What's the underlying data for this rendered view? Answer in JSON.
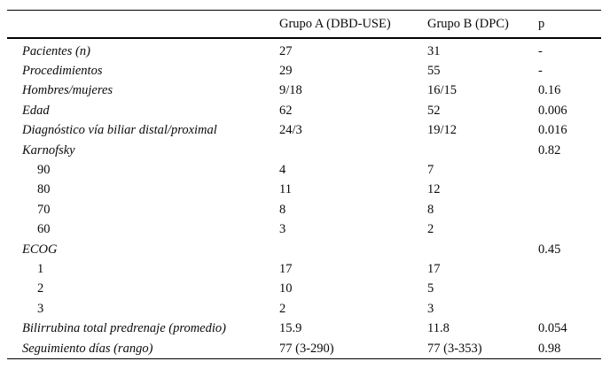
{
  "table": {
    "columns": [
      "",
      "Grupo A (DBD-USE)",
      "Grupo B (DPC)",
      "p"
    ],
    "rows": [
      {
        "label": "Pacientes (n)",
        "italic": true,
        "indent": false,
        "grupo_a": "27",
        "grupo_b": "31",
        "p": "-"
      },
      {
        "label": "Procedimientos",
        "italic": true,
        "indent": false,
        "grupo_a": "29",
        "grupo_b": "55",
        "p": "-"
      },
      {
        "label": "Hombres/mujeres",
        "italic": true,
        "indent": false,
        "grupo_a": "9/18",
        "grupo_b": "16/15",
        "p": "0.16"
      },
      {
        "label": "Edad",
        "italic": true,
        "indent": false,
        "grupo_a": "62",
        "grupo_b": "52",
        "p": "0.006"
      },
      {
        "label": "Diagnóstico vía biliar distal/proximal",
        "italic": true,
        "indent": false,
        "grupo_a": "24/3",
        "grupo_b": "19/12",
        "p": "0.016"
      },
      {
        "label": "Karnofsky",
        "italic": true,
        "indent": false,
        "grupo_a": "",
        "grupo_b": "",
        "p": "0.82"
      },
      {
        "label": "90",
        "italic": false,
        "indent": true,
        "grupo_a": "4",
        "grupo_b": "7",
        "p": ""
      },
      {
        "label": "80",
        "italic": false,
        "indent": true,
        "grupo_a": "11",
        "grupo_b": "12",
        "p": ""
      },
      {
        "label": "70",
        "italic": false,
        "indent": true,
        "grupo_a": "8",
        "grupo_b": "8",
        "p": ""
      },
      {
        "label": "60",
        "italic": false,
        "indent": true,
        "grupo_a": "3",
        "grupo_b": "2",
        "p": ""
      },
      {
        "label": "ECOG",
        "italic": true,
        "indent": false,
        "grupo_a": "",
        "grupo_b": "",
        "p": "0.45"
      },
      {
        "label": "1",
        "italic": false,
        "indent": true,
        "grupo_a": "17",
        "grupo_b": "17",
        "p": ""
      },
      {
        "label": "2",
        "italic": false,
        "indent": true,
        "grupo_a": "10",
        "grupo_b": "5",
        "p": ""
      },
      {
        "label": "3",
        "italic": false,
        "indent": true,
        "grupo_a": "2",
        "grupo_b": "3",
        "p": ""
      },
      {
        "label": "Bilirrubina total predrenaje (promedio)",
        "italic": true,
        "indent": false,
        "grupo_a": "15.9",
        "grupo_b": "11.8",
        "p": "0.054"
      },
      {
        "label": "Seguimiento días (rango)",
        "italic": true,
        "indent": false,
        "grupo_a": "77 (3-290)",
        "grupo_b": "77 (3-353)",
        "p": "0.98"
      }
    ]
  },
  "colors": {
    "text": "#0a0a0a",
    "rule": "#000000",
    "background": "#ffffff"
  }
}
